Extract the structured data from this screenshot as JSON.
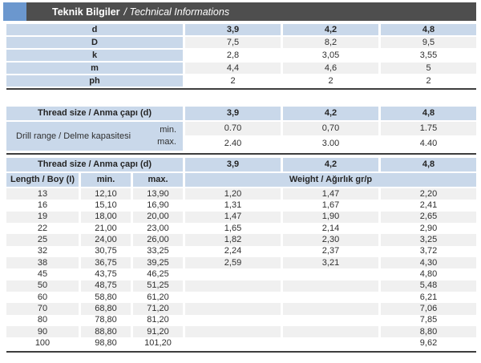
{
  "title": {
    "main": "Teknik Bilgiler",
    "sub": "/ Technical Informations"
  },
  "colors": {
    "accent_blue": "#6b97ce",
    "cell_blue": "#c9d8ea",
    "row_gray": "#f0f0f0",
    "bar_dark": "#4e4e4e",
    "line_dark": "#3d3d3d"
  },
  "tables": {
    "spec": {
      "rows": [
        {
          "label": "d",
          "values": [
            "3,9",
            "4,2",
            "4,8"
          ],
          "is_header": true
        },
        {
          "label": "D",
          "values": [
            "7,5",
            "8,2",
            "9,5"
          ]
        },
        {
          "label": "k",
          "values": [
            "2,8",
            "3,05",
            "3,55"
          ]
        },
        {
          "label": "m",
          "values": [
            "4,4",
            "4,6",
            "5"
          ]
        },
        {
          "label": "ph",
          "values": [
            "2",
            "2",
            "2"
          ]
        }
      ]
    },
    "drill": {
      "header_label": "Thread size / Anma çapı (d)",
      "sizes": [
        "3,9",
        "4,2",
        "4,8"
      ],
      "range_label": "Drill range / Delme kapasitesi",
      "min_label": "min.",
      "max_label": "max.",
      "min_values": [
        "0.70",
        "0,70",
        "1.75"
      ],
      "max_values": [
        "2.40",
        "3.00",
        "4.40"
      ]
    },
    "length_weight": {
      "header_label": "Thread size / Anma çapı (d)",
      "sizes": [
        "3,9",
        "4,2",
        "4,8"
      ],
      "length_label": "Length / Boy (I)",
      "min_label": "min.",
      "max_label": "max.",
      "weight_label": "Weight / Ağırlık gr/p",
      "rows": [
        [
          "13",
          "12,10",
          "13,90",
          "1,20",
          "1,47",
          "2,20"
        ],
        [
          "16",
          "15,10",
          "16,90",
          "1,31",
          "1,67",
          "2,41"
        ],
        [
          "19",
          "18,00",
          "20,00",
          "1,47",
          "1,90",
          "2,65"
        ],
        [
          "22",
          "21,00",
          "23,00",
          "1,65",
          "2,14",
          "2,90"
        ],
        [
          "25",
          "24,00",
          "26,00",
          "1,82",
          "2,30",
          "3,25"
        ],
        [
          "32",
          "30,75",
          "33,25",
          "2,24",
          "2,37",
          "3,72"
        ],
        [
          "38",
          "36,75",
          "39,25",
          "2,59",
          "3,21",
          "4,30"
        ],
        [
          "45",
          "43,75",
          "46,25",
          "",
          "",
          "4,80"
        ],
        [
          "50",
          "48,75",
          "51,25",
          "",
          "",
          "5,48"
        ],
        [
          "60",
          "58,80",
          "61,20",
          "",
          "",
          "6,21"
        ],
        [
          "70",
          "68,80",
          "71,20",
          "",
          "",
          "7,06"
        ],
        [
          "80",
          "78,80",
          "81,20",
          "",
          "",
          "7,85"
        ],
        [
          "90",
          "88,80",
          "91,20",
          "",
          "",
          "8,80"
        ],
        [
          "100",
          "98,80",
          "101,20",
          "",
          "",
          "9,62"
        ]
      ]
    }
  }
}
